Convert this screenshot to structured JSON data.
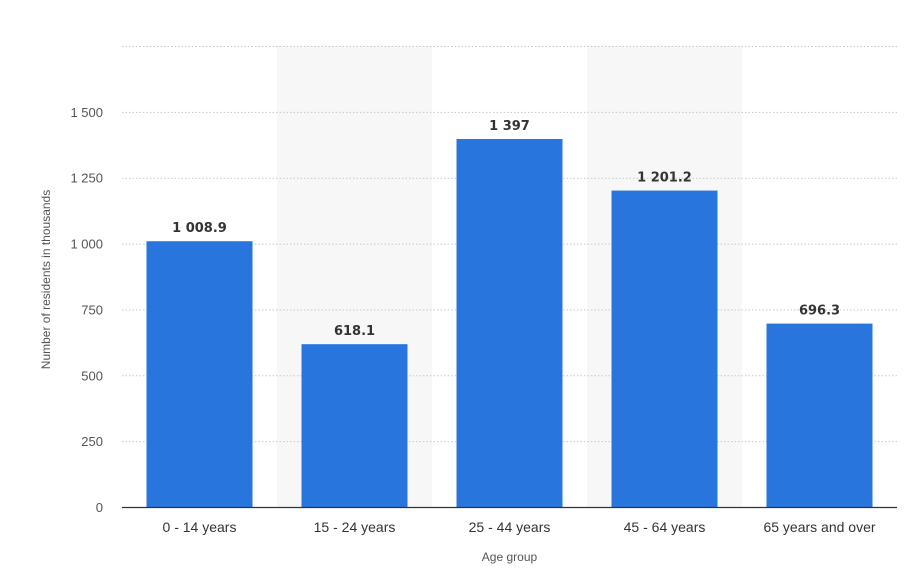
{
  "chart_data": {
    "type": "bar",
    "categories": [
      "0 - 14 years",
      "15 - 24 years",
      "25 - 44 years",
      "45 - 64 years",
      "65 years and over"
    ],
    "values": [
      1008.9,
      618.1,
      1397,
      1201.2,
      696.3
    ],
    "data_labels": [
      "1 008.9",
      "618.1",
      "1 397",
      "1 201.2",
      "696.3"
    ],
    "title": "",
    "xlabel": "Age group",
    "ylabel": "Number of residents in thousands",
    "ylim": [
      0,
      1750
    ],
    "yticks": [
      0,
      250,
      500,
      750,
      1000,
      1250,
      1500
    ],
    "ytick_labels": [
      "0",
      "250",
      "500",
      "750",
      "1 000",
      "1 250",
      "1 500"
    ],
    "grid": true,
    "bar_color": "#2876dd",
    "alt_band_color": "#f7f7f7",
    "grid_color": "#c8c8c8",
    "axis_color": "#333333"
  }
}
